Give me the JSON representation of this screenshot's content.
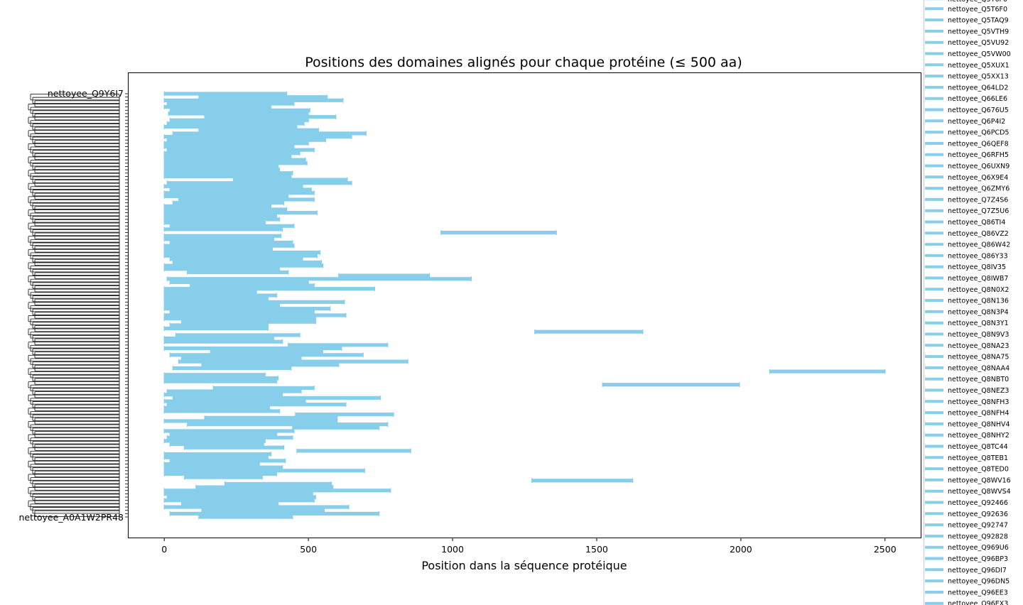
{
  "chart_data": {
    "type": "range_bar",
    "title": "Positions des domaines alignés pour chaque protéine (≤ 500 aa)",
    "xlabel": "Position dans la séquence protéique",
    "ylabel": "",
    "xlim": [
      -125,
      2625
    ],
    "xticks": [
      0,
      500,
      1000,
      1500,
      2000,
      2500
    ],
    "grid": false,
    "bar_color": "#87ceeb",
    "legend_position": "right, outside plot",
    "y_first_label": "nettoyee_Q9Y6I7",
    "y_last_label": "nettoyee_A0A1W2PR48",
    "legend_visible_top_label": "nettoyee_Q5T6F0",
    "legend_labels": [
      "nettoyee_Q5T6F0",
      "nettoyee_Q5TAQ9",
      "nettoyee_Q5VTH9",
      "nettoyee_Q5VU92",
      "nettoyee_Q5VW00",
      "nettoyee_Q5XUX1",
      "nettoyee_Q5XX13",
      "nettoyee_Q64LD2",
      "nettoyee_Q66LE6",
      "nettoyee_Q676U5",
      "nettoyee_Q6P4I2",
      "nettoyee_Q6PCD5",
      "nettoyee_Q6QEF8",
      "nettoyee_Q6RFH5",
      "nettoyee_Q6UXN9",
      "nettoyee_Q6X9E4",
      "nettoyee_Q6ZMY6",
      "nettoyee_Q7Z4S6",
      "nettoyee_Q7Z5U6",
      "nettoyee_Q86TI4",
      "nettoyee_Q86VZ2",
      "nettoyee_Q86W42",
      "nettoyee_Q86Y33",
      "nettoyee_Q8IV35",
      "nettoyee_Q8IWB7",
      "nettoyee_Q8N0X2",
      "nettoyee_Q8N136",
      "nettoyee_Q8N3P4",
      "nettoyee_Q8N3Y1",
      "nettoyee_Q8N9V3",
      "nettoyee_Q8NA23",
      "nettoyee_Q8NA75",
      "nettoyee_Q8NAA4",
      "nettoyee_Q8NBT0",
      "nettoyee_Q8NEZ3",
      "nettoyee_Q8NFH3",
      "nettoyee_Q8NFH4",
      "nettoyee_Q8NHV4",
      "nettoyee_Q8NHY2",
      "nettoyee_Q8TC44",
      "nettoyee_Q8TEB1",
      "nettoyee_Q8TED0",
      "nettoyee_Q8WV16",
      "nettoyee_Q8WVS4",
      "nettoyee_Q92466",
      "nettoyee_Q92636",
      "nettoyee_Q92747",
      "nettoyee_Q92828",
      "nettoyee_Q969U6",
      "nettoyee_Q96BP3",
      "nettoyee_Q96DI7",
      "nettoyee_Q96DN5",
      "nettoyee_Q96EE3",
      "nettoyee_Q96EX3"
    ],
    "segments": [
      [
        0,
        425
      ],
      [
        120,
        565
      ],
      [
        0,
        620
      ],
      [
        10,
        450
      ],
      [
        0,
        370
      ],
      [
        20,
        505
      ],
      [
        15,
        500
      ],
      [
        140,
        595
      ],
      [
        20,
        500
      ],
      [
        10,
        485
      ],
      [
        0,
        460
      ],
      [
        120,
        535
      ],
      [
        30,
        700
      ],
      [
        0,
        650
      ],
      [
        10,
        560
      ],
      [
        0,
        500
      ],
      [
        0,
        450
      ],
      [
        10,
        520
      ],
      [
        0,
        470
      ],
      [
        0,
        440
      ],
      [
        0,
        490
      ],
      [
        0,
        495
      ],
      [
        0,
        395
      ],
      [
        0,
        400
      ],
      [
        0,
        445
      ],
      [
        0,
        440
      ],
      [
        240,
        635
      ],
      [
        10,
        650
      ],
      [
        0,
        480
      ],
      [
        20,
        510
      ],
      [
        0,
        520
      ],
      [
        0,
        430
      ],
      [
        50,
        520
      ],
      [
        30,
        415
      ],
      [
        0,
        370
      ],
      [
        0,
        425
      ],
      [
        0,
        530
      ],
      [
        0,
        390
      ],
      [
        0,
        400
      ],
      [
        0,
        350
      ],
      [
        20,
        450
      ],
      [
        0,
        410
      ],
      [
        960,
        1360
      ],
      [
        0,
        405
      ],
      [
        0,
        380
      ],
      [
        20,
        445
      ],
      [
        0,
        450
      ],
      [
        0,
        375
      ],
      [
        0,
        540
      ],
      [
        0,
        530
      ],
      [
        20,
        480
      ],
      [
        30,
        545
      ],
      [
        0,
        550
      ],
      [
        0,
        400
      ],
      [
        80,
        430
      ],
      [
        605,
        920
      ],
      [
        10,
        1065
      ],
      [
        20,
        500
      ],
      [
        90,
        520
      ],
      [
        0,
        730
      ],
      [
        0,
        320
      ],
      [
        0,
        390
      ],
      [
        0,
        360
      ],
      [
        0,
        625
      ],
      [
        0,
        400
      ],
      [
        0,
        575
      ],
      [
        20,
        520
      ],
      [
        0,
        630
      ],
      [
        0,
        525
      ],
      [
        60,
        525
      ],
      [
        20,
        360
      ],
      [
        0,
        360
      ],
      [
        1285,
        1660
      ],
      [
        40,
        470
      ],
      [
        0,
        380
      ],
      [
        0,
        410
      ],
      [
        430,
        775
      ],
      [
        0,
        615
      ],
      [
        160,
        550
      ],
      [
        20,
        690
      ],
      [
        60,
        475
      ],
      [
        50,
        845
      ],
      [
        130,
        605
      ],
      [
        30,
        440
      ],
      [
        2100,
        2500
      ],
      [
        0,
        350
      ],
      [
        0,
        395
      ],
      [
        0,
        390
      ],
      [
        1520,
        1995
      ],
      [
        170,
        520
      ],
      [
        10,
        475
      ],
      [
        0,
        410
      ],
      [
        30,
        750
      ],
      [
        0,
        490
      ],
      [
        10,
        630
      ],
      [
        0,
        365
      ],
      [
        0,
        400
      ],
      [
        455,
        795
      ],
      [
        140,
        600
      ],
      [
        0,
        600
      ],
      [
        80,
        775
      ],
      [
        445,
        745
      ],
      [
        0,
        450
      ],
      [
        20,
        390
      ],
      [
        10,
        445
      ],
      [
        0,
        350
      ],
      [
        20,
        345
      ],
      [
        70,
        415
      ],
      [
        460,
        855
      ],
      [
        0,
        370
      ],
      [
        0,
        360
      ],
      [
        20,
        420
      ],
      [
        0,
        330
      ],
      [
        0,
        410
      ],
      [
        0,
        695
      ],
      [
        0,
        390
      ],
      [
        70,
        340
      ],
      [
        1275,
        1625
      ],
      [
        210,
        580
      ],
      [
        110,
        585
      ],
      [
        0,
        785
      ],
      [
        0,
        515
      ],
      [
        10,
        525
      ],
      [
        0,
        520
      ],
      [
        60,
        395
      ],
      [
        0,
        640
      ],
      [
        130,
        555
      ],
      [
        20,
        745
      ],
      [
        120,
        445
      ]
    ]
  }
}
